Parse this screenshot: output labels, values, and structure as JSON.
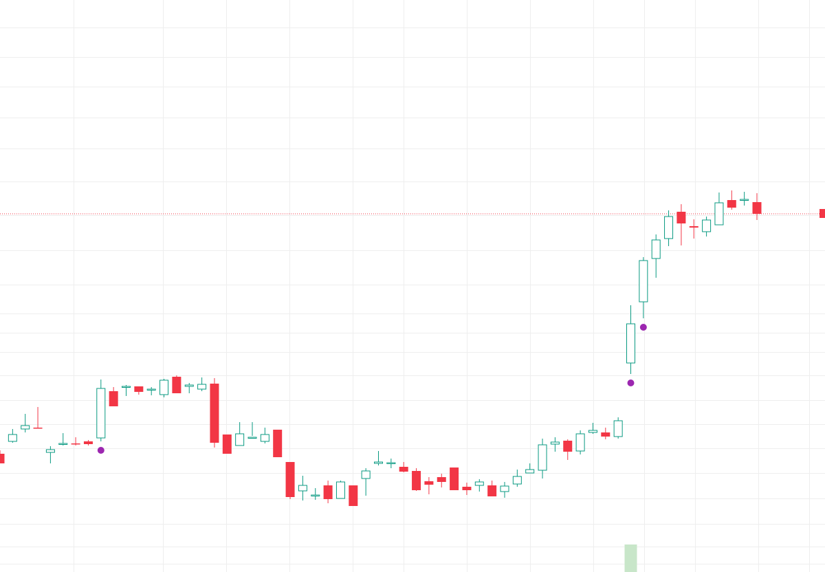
{
  "chart_data": {
    "type": "candlestick",
    "title": "",
    "xlabel": "",
    "ylabel": "",
    "ylim": [
      0,
      832
    ],
    "grid": true,
    "colors": {
      "up": "#089981",
      "down": "#f23645",
      "marker": "#9c27b0",
      "volume": "#c8e6c9",
      "current_price_line": "#f23645",
      "grid": "#eeeeee"
    },
    "last_price": 521,
    "candles": [
      [
        172,
        158,
        177,
        168
      ],
      [
        190,
        200,
        208,
        188
      ],
      [
        208,
        213,
        230,
        203
      ],
      [
        210,
        209,
        240,
        209
      ],
      [
        174,
        178,
        183,
        158
      ],
      [
        187,
        187,
        202,
        184
      ],
      [
        187,
        186,
        196,
        184
      ],
      [
        190,
        186,
        192,
        184
      ],
      [
        195,
        267,
        280,
        190
      ],
      [
        263,
        241,
        269,
        241
      ],
      [
        270,
        270,
        272,
        256
      ],
      [
        270,
        262,
        267,
        258
      ],
      [
        265,
        266,
        269,
        257
      ],
      [
        258,
        279,
        281,
        254
      ],
      [
        284,
        260,
        286,
        263
      ],
      [
        270,
        272,
        275,
        260
      ],
      [
        266,
        273,
        283,
        263
      ],
      [
        274,
        188,
        282,
        181
      ],
      [
        200,
        172,
        195,
        178
      ],
      [
        184,
        201,
        218,
        184
      ],
      [
        196,
        196,
        218,
        198
      ],
      [
        190,
        200,
        210,
        187
      ],
      [
        207,
        167,
        206,
        172
      ],
      [
        160,
        109,
        150,
        106
      ],
      [
        118,
        126,
        140,
        104
      ],
      [
        112,
        112,
        122,
        105
      ],
      [
        126,
        106,
        133,
        100
      ],
      [
        107,
        131,
        133,
        107
      ],
      [
        126,
        96,
        124,
        98
      ],
      [
        136,
        147,
        151,
        111
      ],
      [
        158,
        160,
        176,
        155
      ],
      [
        159,
        159,
        165,
        151
      ],
      [
        153,
        146,
        160,
        145
      ],
      [
        147,
        119,
        151,
        118
      ],
      [
        132,
        127,
        138,
        113
      ],
      [
        138,
        131,
        143,
        123
      ],
      [
        152,
        119,
        149,
        119
      ],
      [
        124,
        119,
        130,
        112
      ],
      [
        126,
        131,
        135,
        117
      ],
      [
        126,
        110,
        133,
        110
      ],
      [
        117,
        125,
        131,
        108
      ],
      [
        128,
        139,
        149,
        124
      ],
      [
        144,
        149,
        158,
        146
      ],
      [
        148,
        185,
        194,
        136
      ],
      [
        186,
        189,
        196,
        175
      ],
      [
        191,
        175,
        193,
        163
      ],
      [
        176,
        201,
        206,
        171
      ],
      [
        203,
        206,
        217,
        201
      ],
      [
        203,
        197,
        210,
        193
      ],
      [
        197,
        220,
        225,
        194
      ],
      [
        304,
        361,
        388,
        288
      ],
      [
        393,
        453,
        458,
        369
      ],
      [
        456,
        483,
        491,
        428
      ],
      [
        485,
        517,
        526,
        474
      ],
      [
        524,
        507,
        535,
        475
      ],
      [
        503,
        501,
        513,
        485
      ],
      [
        495,
        512,
        517,
        488
      ],
      [
        505,
        537,
        552,
        505
      ],
      [
        541,
        530,
        555,
        527
      ],
      [
        541,
        542,
        553,
        533
      ],
      [
        538,
        521,
        551,
        512
      ]
    ],
    "markers": [
      {
        "candle": 8,
        "y": 177
      },
      {
        "candle": 50,
        "y": 275
      },
      {
        "candle": 51,
        "y": 356
      }
    ],
    "volume": [
      {
        "candle": 50,
        "value": 40
      }
    ]
  }
}
